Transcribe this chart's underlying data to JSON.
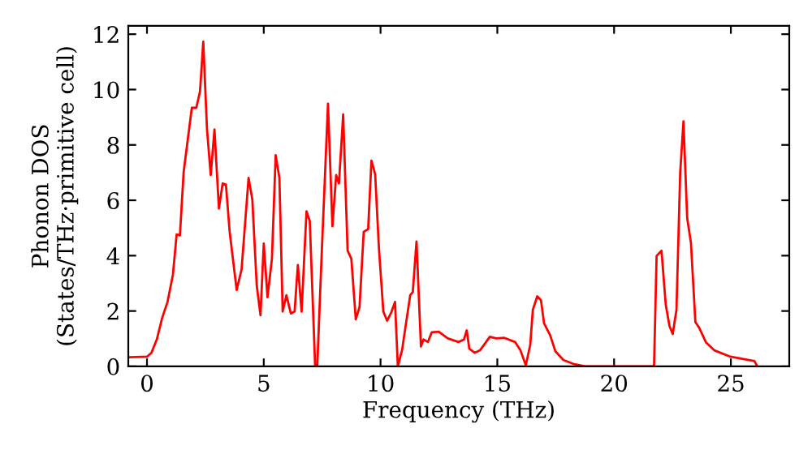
{
  "chart_data": {
    "type": "line",
    "xlabel": "Frequency (THz)",
    "ylabel": "Phonon DOS\n(States/THz·primitive cell)",
    "xlim": [
      -0.8,
      27.5
    ],
    "ylim": [
      0,
      12.3
    ],
    "xticks": [
      0,
      5,
      10,
      15,
      20,
      25
    ],
    "yticks": [
      0,
      2,
      4,
      6,
      8,
      10,
      12
    ],
    "grid": false,
    "legend": false,
    "marker": "none",
    "line_style": "solid",
    "series": [
      {
        "color": "#ff0000",
        "x": [
          -0.74,
          0,
          0.19,
          0.42,
          0.65,
          0.88,
          1.11,
          1.27,
          1.41,
          1.57,
          1.92,
          2.11,
          2.27,
          2.41,
          2.57,
          2.73,
          2.89,
          3.08,
          3.24,
          3.38,
          3.54,
          3.84,
          4.05,
          4.35,
          4.51,
          4.7,
          4.86,
          5.0,
          5.16,
          5.35,
          5.51,
          5.67,
          5.81,
          5.97,
          6.16,
          6.32,
          6.46,
          6.62,
          6.83,
          6.97,
          7.2,
          7.29,
          7.48,
          7.75,
          7.94,
          8.1,
          8.22,
          8.4,
          8.59,
          8.75,
          8.94,
          9.1,
          9.28,
          9.47,
          9.61,
          9.77,
          9.93,
          10.12,
          10.28,
          10.46,
          10.62,
          10.74,
          10.92,
          11.27,
          11.38,
          11.54,
          11.73,
          11.84,
          12.03,
          12.19,
          12.49,
          12.88,
          13.34,
          13.57,
          13.69,
          13.8,
          14.03,
          14.26,
          14.68,
          14.95,
          15.3,
          15.76,
          15.99,
          16.22,
          16.41,
          16.52,
          16.71,
          16.87,
          17.0,
          17.26,
          17.49,
          17.83,
          18.29,
          18.76,
          21.71,
          21.82,
          22.03,
          22.21,
          22.37,
          22.51,
          22.67,
          22.83,
          22.97,
          23.13,
          23.29,
          23.48,
          23.64,
          23.94,
          24.29,
          24.98,
          26.01,
          26.13
        ],
        "values": [
          0.33,
          0.35,
          0.49,
          0.97,
          1.75,
          2.33,
          3.31,
          4.77,
          4.73,
          7.02,
          9.34,
          9.34,
          9.92,
          11.73,
          8.56,
          6.91,
          8.56,
          5.7,
          6.61,
          6.57,
          4.86,
          2.76,
          3.5,
          6.81,
          6.03,
          2.92,
          1.85,
          4.44,
          2.5,
          3.89,
          7.63,
          6.81,
          1.98,
          2.57,
          1.91,
          1.98,
          3.66,
          1.98,
          5.6,
          5.25,
          0,
          0,
          4.05,
          9.49,
          5.06,
          6.91,
          6.61,
          9.1,
          4.18,
          3.89,
          1.7,
          2.14,
          4.86,
          4.96,
          7.43,
          6.94,
          4.28,
          1.98,
          1.65,
          1.95,
          2.33,
          0,
          0.58,
          2.57,
          2.68,
          4.51,
          0.72,
          0.97,
          0.88,
          1.23,
          1.25,
          1.01,
          0.88,
          0.97,
          1.3,
          0.64,
          0.49,
          0.58,
          1.07,
          1.01,
          1.03,
          0.88,
          0.58,
          0.04,
          0.78,
          2.04,
          2.53,
          2.39,
          1.56,
          1.13,
          0.54,
          0.23,
          0.08,
          0,
          0,
          3.99,
          4.18,
          2.24,
          1.46,
          1.17,
          2.04,
          7.0,
          8.85,
          5.35,
          4.47,
          1.6,
          1.4,
          0.86,
          0.58,
          0.35,
          0.19,
          0
        ]
      }
    ]
  }
}
